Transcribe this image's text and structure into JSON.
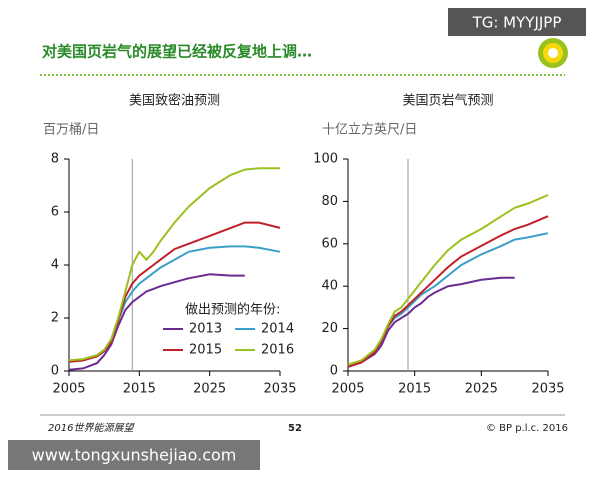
{
  "title": "对美国页岩气的展望已经被反复地上调…",
  "footer": {
    "left": "2016世界能源展望",
    "page": "52",
    "right": "© BP p.l.c. 2016"
  },
  "watermarks": [
    "TG: MYYJJPP",
    "www.tongxunshejiao.com"
  ],
  "chart_data": [
    {
      "type": "line",
      "title": "美国致密油预测",
      "y_label": "百万桶/日",
      "legend_title": "做出预测的年份:",
      "x": [
        2005,
        2007,
        2009,
        2010,
        2011,
        2012,
        2013,
        2014,
        2015,
        2016,
        2017,
        2018,
        2020,
        2022,
        2025,
        2028,
        2030,
        2032,
        2035
      ],
      "xlim": [
        2005,
        2035
      ],
      "xticks": [
        2005,
        2015,
        2025,
        2035
      ],
      "ylim": [
        0,
        8
      ],
      "yticks": [
        0,
        2,
        4,
        6,
        8
      ],
      "vline_x": 2014,
      "series": [
        {
          "name": "2013",
          "color": "#6b2c91",
          "values": [
            0.05,
            0.1,
            0.3,
            0.6,
            1.0,
            1.7,
            2.3,
            2.6,
            2.8,
            3.0,
            3.1,
            3.2,
            3.35,
            3.5,
            3.65,
            3.6,
            3.6,
            null,
            null
          ]
        },
        {
          "name": "2014",
          "color": "#3aa0c8",
          "values": [
            0.35,
            0.4,
            0.55,
            0.75,
            1.1,
            1.9,
            2.6,
            3.0,
            3.3,
            3.5,
            3.7,
            3.9,
            4.2,
            4.5,
            4.65,
            4.7,
            4.7,
            4.65,
            4.5
          ]
        },
        {
          "name": "2015",
          "color": "#c0202a",
          "values": [
            0.35,
            0.4,
            0.55,
            0.75,
            1.1,
            1.9,
            2.8,
            3.3,
            3.6,
            3.8,
            4.0,
            4.2,
            4.6,
            4.8,
            5.1,
            5.4,
            5.6,
            5.6,
            5.4
          ]
        },
        {
          "name": "2016",
          "color": "#9ac21e",
          "values": [
            0.4,
            0.45,
            0.6,
            0.8,
            1.2,
            2.0,
            3.0,
            4.0,
            4.5,
            4.2,
            4.5,
            4.9,
            5.6,
            6.2,
            6.9,
            7.4,
            7.6,
            7.65,
            7.65
          ]
        }
      ]
    },
    {
      "type": "line",
      "title": "美国页岩气预测",
      "y_label": "十亿立方英尺/日",
      "x": [
        2005,
        2007,
        2009,
        2010,
        2011,
        2012,
        2013,
        2014,
        2015,
        2016,
        2017,
        2018,
        2020,
        2022,
        2025,
        2028,
        2030,
        2032,
        2035
      ],
      "xlim": [
        2005,
        2035
      ],
      "xticks": [
        2005,
        2015,
        2025,
        2035
      ],
      "ylim": [
        0,
        100
      ],
      "yticks": [
        0,
        20,
        40,
        60,
        80,
        100
      ],
      "vline_x": 2014,
      "series": [
        {
          "name": "2013",
          "color": "#6b2c91",
          "values": [
            2,
            4,
            8,
            12,
            19,
            23,
            25,
            27,
            30,
            32,
            35,
            37,
            40,
            41,
            43,
            44,
            44,
            null,
            null
          ]
        },
        {
          "name": "2014",
          "color": "#3aa0c8",
          "values": [
            2,
            4,
            9,
            14,
            21,
            25,
            27,
            30,
            33,
            36,
            38,
            40,
            45,
            50,
            55,
            59,
            62,
            63,
            65
          ]
        },
        {
          "name": "2015",
          "color": "#c0202a",
          "values": [
            2,
            4,
            9,
            14,
            21,
            26,
            28,
            31,
            34,
            37,
            40,
            43,
            49,
            54,
            59,
            64,
            67,
            69,
            73
          ]
        },
        {
          "name": "2016",
          "color": "#9ac21e",
          "values": [
            3,
            5,
            10,
            15,
            22,
            28,
            30,
            34,
            38,
            42,
            46,
            50,
            57,
            62,
            67,
            73,
            77,
            79,
            83
          ]
        }
      ]
    }
  ]
}
